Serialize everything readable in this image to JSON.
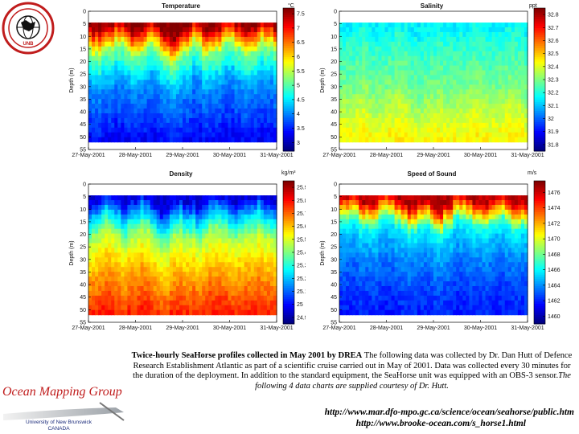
{
  "logo": {
    "text": "GEODESY AND GEOMATICS ENGINEERING",
    "sub": "UNB"
  },
  "chart_data": [
    {
      "type": "heatmap",
      "title": "Temperature",
      "unit": "°C",
      "ylabel": "Depth (m)",
      "x_ticks": [
        "27-May-2001",
        "28-May-2001",
        "29-May-2001",
        "30-May-2001",
        "31-May-2001"
      ],
      "y_ticks": [
        0,
        5,
        10,
        15,
        20,
        25,
        30,
        35,
        40,
        45,
        50,
        55
      ],
      "ylim": [
        0,
        55
      ],
      "colorbar_ticks": [
        3,
        3.5,
        4,
        4.5,
        5,
        5.5,
        6,
        6.5,
        7,
        7.5
      ],
      "clim": [
        2.7,
        7.7
      ],
      "profile": {
        "depth": [
          5,
          8,
          12,
          15,
          20,
          25,
          30,
          40,
          50
        ],
        "value": [
          7.6,
          6.8,
          6.0,
          5.2,
          4.8,
          4.3,
          4.0,
          3.7,
          3.3
        ]
      }
    },
    {
      "type": "heatmap",
      "title": "Salinity",
      "unit": "ppt",
      "ylabel": "Depth (m)",
      "x_ticks": [
        "27-May-2001",
        "28-May-2001",
        "29-May-2001",
        "30-May-2001",
        "31-May-2001"
      ],
      "y_ticks": [
        0,
        5,
        10,
        15,
        20,
        25,
        30,
        35,
        40,
        45,
        50,
        55
      ],
      "ylim": [
        0,
        55
      ],
      "colorbar_ticks": [
        31.8,
        31.9,
        32,
        32.1,
        32.2,
        32.3,
        32.4,
        32.5,
        32.6,
        32.7,
        32.8
      ],
      "clim": [
        31.75,
        32.85
      ],
      "profile": {
        "depth": [
          5,
          10,
          20,
          30,
          40,
          50
        ],
        "value": [
          32.15,
          32.2,
          32.25,
          32.3,
          32.38,
          32.45
        ]
      }
    },
    {
      "type": "heatmap",
      "title": "Density",
      "unit": "kg/m³",
      "ylabel": "Depth (m)",
      "x_ticks": [
        "27-May-2001",
        "28-May-2001",
        "29-May-2001",
        "30-May-2001",
        "31-May-2001"
      ],
      "y_ticks": [
        0,
        5,
        10,
        15,
        20,
        25,
        30,
        35,
        40,
        45,
        50,
        55
      ],
      "ylim": [
        0,
        55
      ],
      "colorbar_ticks": [
        24.9,
        25,
        25.1,
        25.2,
        25.3,
        25.4,
        25.5,
        25.6,
        25.7,
        25.8,
        25.9
      ],
      "clim": [
        24.85,
        25.95
      ],
      "profile": {
        "depth": [
          5,
          10,
          15,
          20,
          30,
          40,
          50
        ],
        "value": [
          24.95,
          25.15,
          25.3,
          25.45,
          25.58,
          25.68,
          25.78
        ]
      }
    },
    {
      "type": "heatmap",
      "title": "Speed of Sound",
      "unit": "m/s",
      "ylabel": "Depth (m)",
      "x_ticks": [
        "27-May-2001",
        "28-May-2001",
        "29-May-2001",
        "30-May-2001",
        "31-May-2001"
      ],
      "y_ticks": [
        0,
        5,
        10,
        15,
        20,
        25,
        30,
        35,
        40,
        45,
        50,
        55
      ],
      "ylim": [
        0,
        55
      ],
      "colorbar_ticks": [
        1460,
        1462,
        1464,
        1466,
        1468,
        1470,
        1472,
        1474,
        1476
      ],
      "clim": [
        1459,
        1477.5
      ],
      "profile": {
        "depth": [
          5,
          8,
          12,
          15,
          20,
          30,
          40,
          50
        ],
        "value": [
          1476.5,
          1473.5,
          1469.5,
          1466.5,
          1465,
          1463.5,
          1462.5,
          1461.8
        ]
      }
    }
  ],
  "caption": {
    "bold": "Twice-hourly SeaHorse profiles collected in May 2001 by DREA",
    "normal": " The following data was collected by Dr. Dan Hutt of Defence Research Establishment Atlantic as part of a scientific cruise carried out in May of 2001. Data was collected every 30 minutes for the duration of the deployment. In addition to the standard equipment, the SeaHorse unit was equipped with an OBS-3 sensor.",
    "italic": "The following 4 data charts are supplied courtesy of Dr. Hutt."
  },
  "urls": [
    "http://www.mar.dfo-mpo.gc.ca/science/ocean/seahorse/public.htm",
    "http://www.brooke-ocean.com/s_horse1.html"
  ],
  "footer": {
    "group": "Ocean Mapping Group",
    "university": "University of New Brunswick",
    "country": "CANADA"
  }
}
